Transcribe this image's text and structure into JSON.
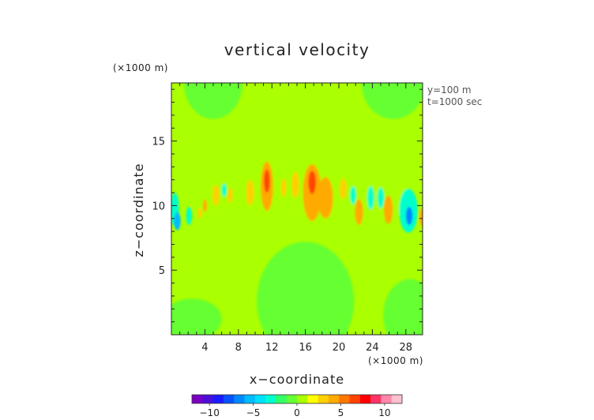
{
  "chart_data": {
    "type": "heatmap",
    "title": "vertical velocity",
    "xlabel": "x−coordinate",
    "ylabel": "z−coordinate",
    "x_unit": "(×1000 m)",
    "y_unit": "(×1000 m)",
    "annotations": [
      "y=100 m",
      "t=1000 sec"
    ],
    "xlim": [
      0,
      30
    ],
    "ylim": [
      0,
      19.5
    ],
    "x_ticks": [
      4,
      8,
      12,
      16,
      20,
      24,
      28
    ],
    "y_ticks": [
      5,
      10,
      15
    ],
    "colorbar": {
      "range": [
        -12,
        12
      ],
      "ticks": [
        -10,
        -5,
        0,
        5,
        10
      ],
      "tick_labels": [
        "−10",
        "−5",
        "0",
        "5",
        "10"
      ],
      "colors": [
        "#7b00c4",
        "#4b0fd8",
        "#1a1aff",
        "#0a50ff",
        "#0088ff",
        "#00bbff",
        "#00e0ff",
        "#00ffcc",
        "#33ff66",
        "#66ff33",
        "#aaff00",
        "#ffff00",
        "#ffd000",
        "#ffaa00",
        "#ff7700",
        "#ff4400",
        "#ff0000",
        "#ff3366",
        "#ff88a8",
        "#ffbfcf"
      ]
    },
    "background_value": 0.3,
    "regions": [
      {
        "shape": "ellipse",
        "cx": 5,
        "cy": 19.5,
        "rx": 3.5,
        "ry": 2.8,
        "value": -0.6
      },
      {
        "shape": "ellipse",
        "cx": 26.5,
        "cy": 19.5,
        "rx": 3.8,
        "ry": 2.8,
        "value": -0.6
      },
      {
        "shape": "ellipse",
        "cx": 16,
        "cy": 2.6,
        "rx": 5.8,
        "ry": 4.6,
        "value": -0.6
      },
      {
        "shape": "ellipse",
        "cx": 2.5,
        "cy": 1.2,
        "rx": 3.5,
        "ry": 1.6,
        "value": -0.6
      },
      {
        "shape": "ellipse",
        "cx": 28.5,
        "cy": 1.5,
        "rx": 3.2,
        "ry": 2.8,
        "value": -0.6
      },
      {
        "shape": "ellipse",
        "cx": 15.5,
        "cy": 10.5,
        "rx": 13.5,
        "ry": 2.4,
        "value": 1.0
      },
      {
        "shape": "ellipse",
        "cx": 14.5,
        "cy": 14.5,
        "rx": 6.5,
        "ry": 2.4,
        "value": 1.0
      },
      {
        "shape": "ellipse",
        "cx": 0.4,
        "cy": 9.7,
        "rx": 0.5,
        "ry": 1.3,
        "value": -3.0
      },
      {
        "shape": "ellipse",
        "cx": 0.7,
        "cy": 8.8,
        "rx": 0.4,
        "ry": 0.7,
        "value": -6.0
      },
      {
        "shape": "ellipse",
        "cx": 2.1,
        "cy": 9.2,
        "rx": 0.35,
        "ry": 0.7,
        "value": -2.5
      },
      {
        "shape": "ellipse",
        "cx": 4.0,
        "cy": 10.0,
        "rx": 0.25,
        "ry": 0.5,
        "value": 4.0
      },
      {
        "shape": "ellipse",
        "cx": 3.4,
        "cy": 9.4,
        "rx": 0.25,
        "ry": 0.4,
        "value": 3.0
      },
      {
        "shape": "ellipse",
        "cx": 5.3,
        "cy": 10.8,
        "rx": 0.4,
        "ry": 0.8,
        "value": 3.5
      },
      {
        "shape": "ellipse",
        "cx": 7.0,
        "cy": 10.8,
        "rx": 0.3,
        "ry": 0.6,
        "value": 3.0
      },
      {
        "shape": "ellipse",
        "cx": 6.3,
        "cy": 11.2,
        "rx": 0.3,
        "ry": 0.5,
        "value": -2.5
      },
      {
        "shape": "ellipse",
        "cx": 9.4,
        "cy": 11.0,
        "rx": 0.45,
        "ry": 1.0,
        "value": 3.5
      },
      {
        "shape": "ellipse",
        "cx": 11.4,
        "cy": 11.5,
        "rx": 0.75,
        "ry": 1.9,
        "value": 4.0
      },
      {
        "shape": "ellipse",
        "cx": 11.4,
        "cy": 11.9,
        "rx": 0.35,
        "ry": 0.9,
        "value": 6.0
      },
      {
        "shape": "ellipse",
        "cx": 13.4,
        "cy": 11.4,
        "rx": 0.3,
        "ry": 0.7,
        "value": 3.0
      },
      {
        "shape": "ellipse",
        "cx": 14.8,
        "cy": 11.6,
        "rx": 0.45,
        "ry": 1.0,
        "value": 3.5
      },
      {
        "shape": "ellipse",
        "cx": 16.8,
        "cy": 11.0,
        "rx": 1.1,
        "ry": 2.2,
        "value": 4.0
      },
      {
        "shape": "ellipse",
        "cx": 18.4,
        "cy": 10.6,
        "rx": 0.9,
        "ry": 1.6,
        "value": 4.0
      },
      {
        "shape": "ellipse",
        "cx": 16.8,
        "cy": 11.8,
        "rx": 0.45,
        "ry": 0.9,
        "value": 7.0
      },
      {
        "shape": "ellipse",
        "cx": 20.5,
        "cy": 11.3,
        "rx": 0.4,
        "ry": 0.8,
        "value": 3.0
      },
      {
        "shape": "ellipse",
        "cx": 21.7,
        "cy": 10.8,
        "rx": 0.35,
        "ry": 0.7,
        "value": -2.5
      },
      {
        "shape": "ellipse",
        "cx": 22.4,
        "cy": 9.5,
        "rx": 0.5,
        "ry": 1.0,
        "value": 4.0
      },
      {
        "shape": "ellipse",
        "cx": 23.8,
        "cy": 10.6,
        "rx": 0.4,
        "ry": 0.9,
        "value": -2.5
      },
      {
        "shape": "ellipse",
        "cx": 25.9,
        "cy": 9.7,
        "rx": 0.55,
        "ry": 1.1,
        "value": 4.5
      },
      {
        "shape": "ellipse",
        "cx": 25.0,
        "cy": 10.6,
        "rx": 0.4,
        "ry": 0.8,
        "value": -2.5
      },
      {
        "shape": "ellipse",
        "cx": 28.3,
        "cy": 9.6,
        "rx": 1.1,
        "ry": 1.7,
        "value": -3.0
      },
      {
        "shape": "ellipse",
        "cx": 28.4,
        "cy": 9.2,
        "rx": 0.4,
        "ry": 0.7,
        "value": -6.5
      },
      {
        "shape": "ellipse",
        "cx": 29.9,
        "cy": 9.1,
        "rx": 0.3,
        "ry": 0.7,
        "value": 4.0
      }
    ]
  }
}
